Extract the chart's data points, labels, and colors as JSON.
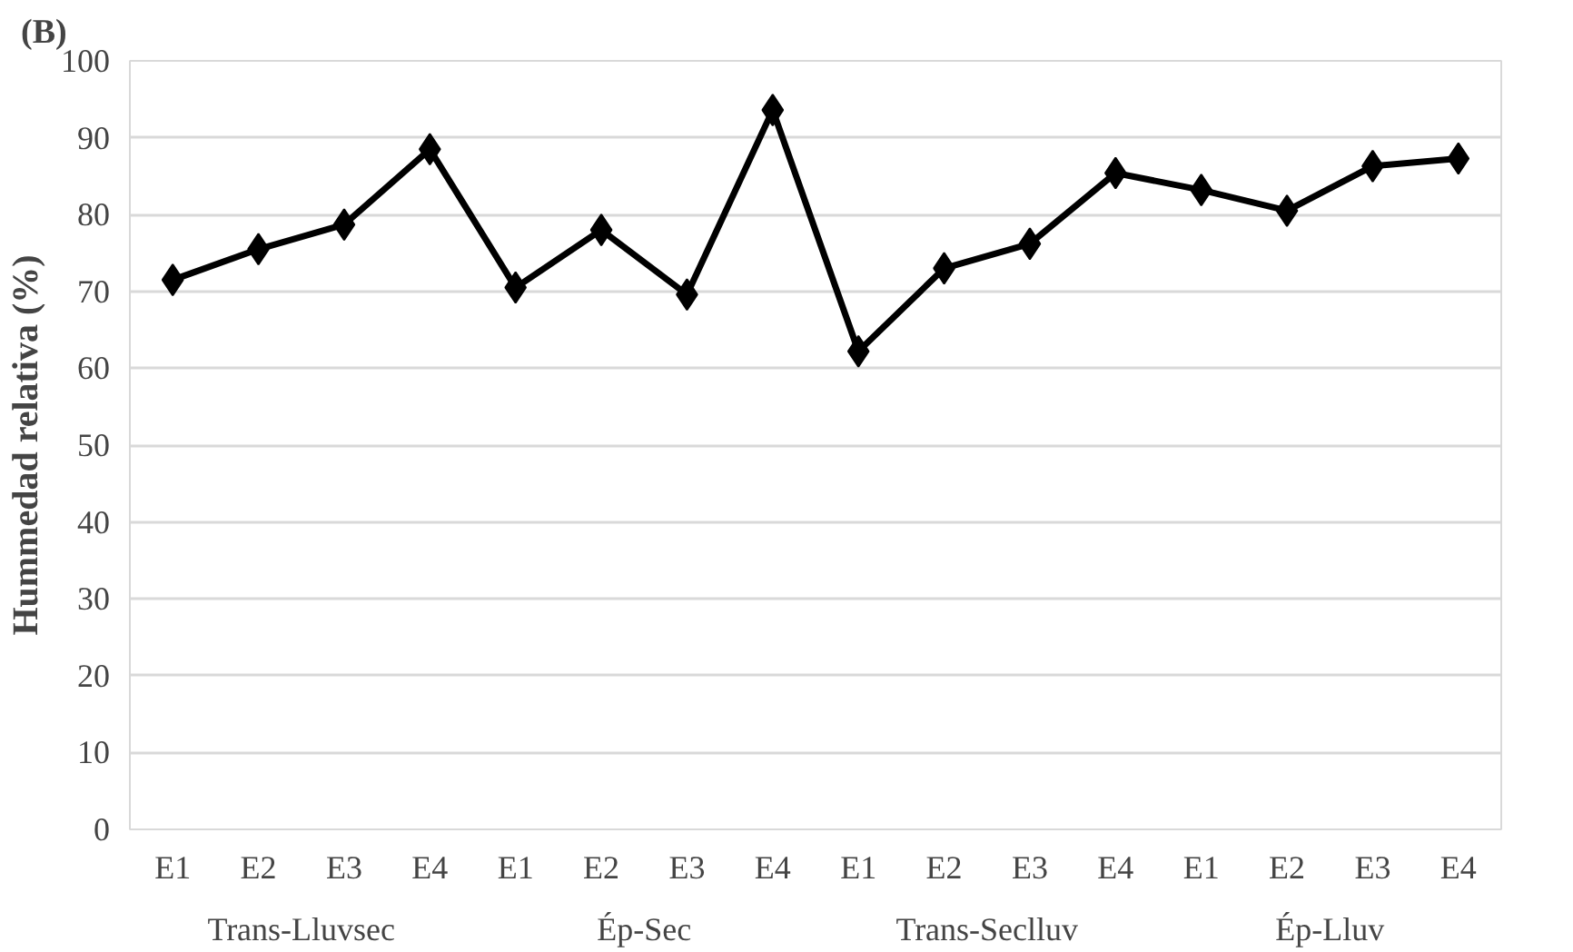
{
  "chart_data": {
    "type": "line",
    "title": "(B)",
    "ylabel": "Hummedad relativa (%)",
    "categories": [
      "E1",
      "E2",
      "E3",
      "E4",
      "E1",
      "E2",
      "E3",
      "E4",
      "E1",
      "E2",
      "E3",
      "E4",
      "E1",
      "E2",
      "E3",
      "E4"
    ],
    "annotations": [
      "Trans-Lluvsec",
      "Ép-Sec",
      "Trans-Seclluv",
      "Ép-Lluv"
    ],
    "series": [
      {
        "color": "#000000",
        "values": [
          71.5,
          75.5,
          78.7,
          88.5,
          70.5,
          78,
          69.6,
          93.6,
          62.2,
          73,
          76.2,
          85.4,
          83.2,
          80.5,
          86.3,
          87.3
        ]
      }
    ],
    "ylim": [
      0,
      100
    ],
    "yticks": [
      0,
      10,
      20,
      30,
      40,
      50,
      60,
      70,
      80,
      90,
      100
    ],
    "grid": "y",
    "marker": "diamond",
    "line_style": "solid"
  }
}
